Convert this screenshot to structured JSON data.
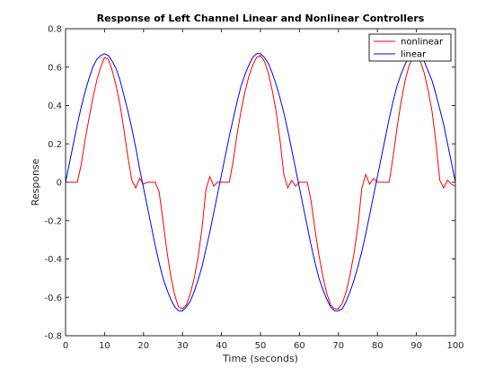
{
  "chart_data": {
    "type": "line",
    "title": "Response of Left Channel Linear and Nonlinear Controllers",
    "xlabel": "Time (seconds)",
    "ylabel": "Response",
    "xlim": [
      0,
      100
    ],
    "ylim": [
      -0.8,
      0.8
    ],
    "xticks": [
      0,
      10,
      20,
      30,
      40,
      50,
      60,
      70,
      80,
      90,
      100
    ],
    "yticks": [
      -0.8,
      -0.6,
      -0.4,
      -0.2,
      0,
      0.2,
      0.4,
      0.6,
      0.8
    ],
    "xtick_labels": [
      "0",
      "10",
      "20",
      "30",
      "40",
      "50",
      "60",
      "70",
      "80",
      "90",
      "100"
    ],
    "ytick_labels": [
      "-0.8",
      "-0.6",
      "-0.4",
      "-0.2",
      "0",
      "0.2",
      "0.4",
      "0.6",
      "0.8"
    ],
    "legend_position": "top-right",
    "grid": false,
    "series": [
      {
        "name": "nonlinear",
        "color": "#ff0000",
        "x": [
          0,
          1,
          2,
          3,
          4,
          5,
          6,
          7,
          8,
          9,
          10,
          11,
          12,
          13,
          14,
          15,
          16,
          17,
          18,
          19,
          20,
          21,
          22,
          23,
          24,
          25,
          26,
          27,
          28,
          29,
          30,
          31,
          32,
          33,
          34,
          35,
          36,
          37,
          38,
          39,
          40,
          41,
          42,
          43,
          44,
          45,
          46,
          47,
          48,
          49,
          50,
          51,
          52,
          53,
          54,
          55,
          56,
          57,
          58,
          59,
          60,
          61,
          62,
          63,
          64,
          65,
          66,
          67,
          68,
          69,
          70,
          71,
          72,
          73,
          74,
          75,
          76,
          77,
          78,
          79,
          80,
          81,
          82,
          83,
          84,
          85,
          86,
          87,
          88,
          89,
          90,
          91,
          92,
          93,
          94,
          95,
          96,
          97,
          98,
          99,
          100
        ],
        "y": [
          0,
          0,
          0,
          0,
          0.09,
          0.22,
          0.33,
          0.44,
          0.53,
          0.6,
          0.65,
          0.64,
          0.58,
          0.5,
          0.4,
          0.27,
          0.13,
          0.01,
          -0.03,
          0.02,
          -0.01,
          0,
          0,
          0,
          -0.05,
          -0.2,
          -0.36,
          -0.49,
          -0.59,
          -0.65,
          -0.66,
          -0.64,
          -0.58,
          -0.5,
          -0.39,
          -0.24,
          -0.04,
          0.03,
          -0.02,
          0,
          0,
          0,
          0,
          0.11,
          0.25,
          0.37,
          0.47,
          0.55,
          0.61,
          0.65,
          0.66,
          0.63,
          0.57,
          0.48,
          0.37,
          0.22,
          0.04,
          -0.03,
          0.01,
          -0.02,
          0,
          0,
          0,
          -0.1,
          -0.25,
          -0.38,
          -0.49,
          -0.58,
          -0.64,
          -0.66,
          -0.66,
          -0.63,
          -0.57,
          -0.48,
          -0.37,
          -0.23,
          -0.03,
          0.04,
          -0.01,
          0.02,
          0,
          0,
          0,
          0,
          0.13,
          0.28,
          0.41,
          0.52,
          0.6,
          0.65,
          0.66,
          0.63,
          0.57,
          0.48,
          0.37,
          0.21,
          0.01,
          -0.03,
          0.01,
          -0.01,
          -0.02
        ]
      },
      {
        "name": "linear",
        "color": "#0000ff",
        "x": [
          0,
          1,
          2,
          3,
          4,
          5,
          6,
          7,
          8,
          9,
          10,
          11,
          12,
          13,
          14,
          15,
          16,
          17,
          18,
          19,
          20,
          21,
          22,
          23,
          24,
          25,
          26,
          27,
          28,
          29,
          30,
          31,
          32,
          33,
          34,
          35,
          36,
          37,
          38,
          39,
          40,
          41,
          42,
          43,
          44,
          45,
          46,
          47,
          48,
          49,
          50,
          51,
          52,
          53,
          54,
          55,
          56,
          57,
          58,
          59,
          60,
          61,
          62,
          63,
          64,
          65,
          66,
          67,
          68,
          69,
          70,
          71,
          72,
          73,
          74,
          75,
          76,
          77,
          78,
          79,
          80,
          81,
          82,
          83,
          84,
          85,
          86,
          87,
          88,
          89,
          90,
          91,
          92,
          93,
          94,
          95,
          96,
          97,
          98,
          99,
          100
        ],
        "y": [
          0,
          0.1,
          0.2,
          0.3,
          0.39,
          0.47,
          0.54,
          0.6,
          0.64,
          0.66,
          0.67,
          0.66,
          0.63,
          0.59,
          0.53,
          0.45,
          0.37,
          0.28,
          0.18,
          0.07,
          -0.03,
          -0.13,
          -0.23,
          -0.33,
          -0.42,
          -0.5,
          -0.56,
          -0.61,
          -0.65,
          -0.67,
          -0.67,
          -0.65,
          -0.62,
          -0.57,
          -0.51,
          -0.44,
          -0.35,
          -0.26,
          -0.16,
          -0.06,
          0.04,
          0.14,
          0.24,
          0.33,
          0.42,
          0.5,
          0.56,
          0.61,
          0.65,
          0.67,
          0.67,
          0.65,
          0.62,
          0.57,
          0.51,
          0.44,
          0.36,
          0.27,
          0.17,
          0.07,
          -0.03,
          -0.13,
          -0.23,
          -0.33,
          -0.42,
          -0.5,
          -0.56,
          -0.61,
          -0.65,
          -0.67,
          -0.67,
          -0.66,
          -0.62,
          -0.57,
          -0.51,
          -0.44,
          -0.36,
          -0.27,
          -0.17,
          -0.07,
          0.03,
          0.13,
          0.23,
          0.33,
          0.42,
          0.5,
          0.56,
          0.61,
          0.65,
          0.67,
          0.67,
          0.66,
          0.63,
          0.58,
          0.53,
          0.46,
          0.38,
          0.3,
          0.2,
          0.1,
          0
        ]
      }
    ]
  }
}
